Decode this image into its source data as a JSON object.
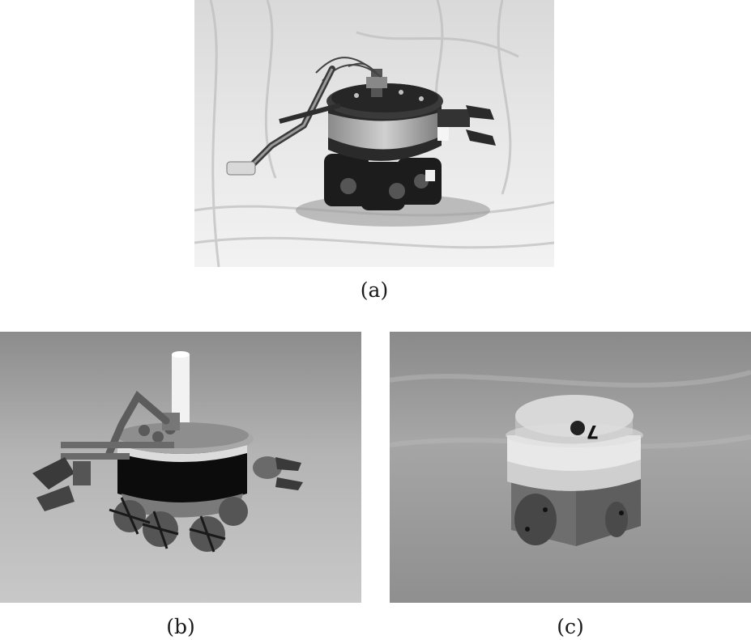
{
  "figure": {
    "panels": [
      {
        "id": "a",
        "caption": "(a)"
      },
      {
        "id": "b",
        "caption": "(b)"
      },
      {
        "id": "c",
        "caption": "(c)"
      }
    ],
    "panel_c_marker": "7",
    "colors": {
      "background": "#ffffff",
      "caption_text": "#1a1a1a"
    }
  }
}
